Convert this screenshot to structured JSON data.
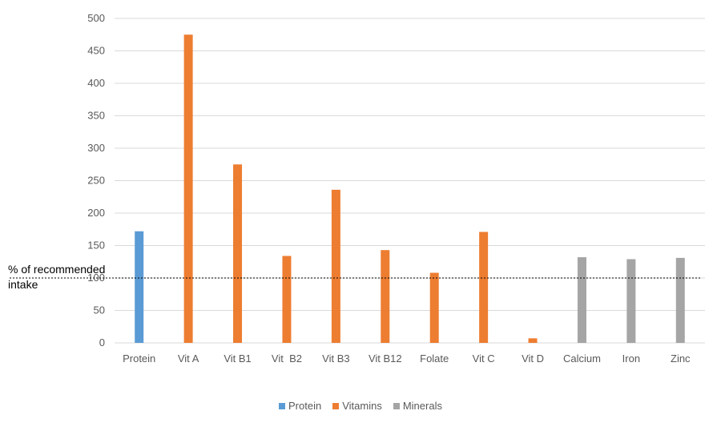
{
  "chart_data": {
    "type": "bar",
    "categories": [
      "Protein",
      "Vit A",
      "Vit B1",
      "Vit  B2",
      "Vit B3",
      "Vit B12",
      "Folate",
      "Vit C",
      "Vit D",
      "Calcium",
      "Iron",
      "Zinc"
    ],
    "series": [
      {
        "name": "Protein",
        "color": "#5B9BD5",
        "values": [
          172,
          null,
          null,
          null,
          null,
          null,
          null,
          null,
          null,
          null,
          null,
          null
        ]
      },
      {
        "name": "Vitamins",
        "color": "#ED7D31",
        "values": [
          null,
          475,
          275,
          134,
          236,
          143,
          108,
          171,
          7,
          null,
          null,
          null
        ]
      },
      {
        "name": "Minerals",
        "color": "#A5A5A5",
        "values": [
          null,
          null,
          null,
          null,
          null,
          null,
          null,
          null,
          null,
          132,
          129,
          131
        ]
      }
    ],
    "ylim": [
      0,
      500
    ],
    "yticks": [
      0,
      50,
      100,
      150,
      200,
      250,
      300,
      350,
      400,
      450,
      500
    ],
    "grid": true,
    "reference_line": {
      "value": 100,
      "label": "% of recommended intake",
      "style": "dotted"
    },
    "legend_position": "bottom"
  },
  "legend": {
    "protein": "Protein",
    "vitamins": "Vitamins",
    "minerals": "Minerals"
  },
  "reference_label": "% of recommended\nintake"
}
